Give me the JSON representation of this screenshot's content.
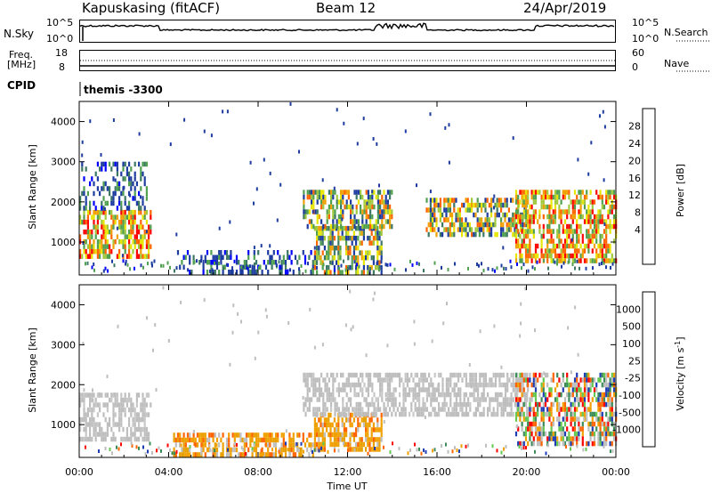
{
  "header": {
    "title": "Kapuskasing (fitACF)",
    "beam": "Beam 12",
    "date": "24/Apr/2019"
  },
  "nsky": {
    "label": "N.Sky",
    "left_top": "10^5",
    "left_bottom": "10^0",
    "right_top": "10^5",
    "right_bottom": "10^0",
    "right_label": "N.Search"
  },
  "freq": {
    "label_line1": "Freq.",
    "label_line2": "[MHz]",
    "left_top": "18",
    "left_bottom": "8",
    "right_top": "60",
    "right_bottom": "0",
    "right_label": "Nave"
  },
  "cpid": {
    "label": "CPID",
    "value": "themis -3300"
  },
  "colors": {
    "power": [
      "#0000ff",
      "#1e3ca0",
      "#3c7864",
      "#50a050",
      "#a0c83c",
      "#e6e600",
      "#f0a000",
      "#ff6400",
      "#ff0000"
    ],
    "velocity": [
      "#1e3cb4",
      "#2864a0",
      "#3c8c5a",
      "#64c850",
      "#c8c8c8",
      "#c8c8c8",
      "#f0a000",
      "#ff6400",
      "#ff0000"
    ],
    "ground_scatter": "#bebebe"
  },
  "chart_data": [
    {
      "type": "heatmap",
      "panel": "power",
      "title": "",
      "xlabel": "Time UT",
      "ylabel": "Slant Range [km]",
      "xlim": [
        "00:00",
        "24:00"
      ],
      "ylim": [
        180,
        4500
      ],
      "x_ticks": [
        "00:00",
        "04:00",
        "08:00",
        "12:00",
        "16:00",
        "20:00",
        "00:00"
      ],
      "y_ticks": [
        1000,
        2000,
        3000,
        4000
      ],
      "colorbar": {
        "label": "Power [dB]",
        "ticks": [
          "4",
          "8",
          "12",
          "16",
          "20",
          "24",
          "28"
        ]
      },
      "regions": [
        {
          "t": [
            0.0,
            3.2
          ],
          "range": [
            600,
            1800
          ],
          "level": "high"
        },
        {
          "t": [
            0.0,
            3.0
          ],
          "range": [
            1800,
            3000
          ],
          "level": "low"
        },
        {
          "t": [
            4.2,
            10.5
          ],
          "range": [
            250,
            800
          ],
          "level": "low"
        },
        {
          "t": [
            10.5,
            13.5
          ],
          "range": [
            300,
            1400
          ],
          "level": "medium"
        },
        {
          "t": [
            10.0,
            14.0
          ],
          "range": [
            1400,
            2300
          ],
          "level": "medium"
        },
        {
          "t": [
            15.5,
            20.0
          ],
          "range": [
            1200,
            2100
          ],
          "level": "medium"
        },
        {
          "t": [
            19.5,
            24.0
          ],
          "range": [
            500,
            2300
          ],
          "level": "high"
        }
      ]
    },
    {
      "type": "heatmap",
      "panel": "velocity",
      "title": "",
      "xlabel": "Time UT",
      "ylabel": "Slant Range [km]",
      "xlim": [
        "00:00",
        "24:00"
      ],
      "ylim": [
        180,
        4500
      ],
      "x_ticks": [
        "00:00",
        "04:00",
        "08:00",
        "12:00",
        "16:00",
        "20:00",
        "00:00"
      ],
      "y_ticks": [
        1000,
        2000,
        3000,
        4000
      ],
      "colorbar": {
        "label": "Velocity [m s-1]",
        "ticks": [
          "1000",
          "500",
          "100",
          "25",
          "-25",
          "-100",
          "-500",
          "-1000"
        ]
      },
      "regions": [
        {
          "t": [
            0.0,
            3.2
          ],
          "range": [
            600,
            1800
          ],
          "level": "ground"
        },
        {
          "t": [
            4.2,
            10.5
          ],
          "range": [
            250,
            800
          ],
          "level": "negative"
        },
        {
          "t": [
            10.5,
            13.5
          ],
          "range": [
            400,
            1300
          ],
          "level": "negative"
        },
        {
          "t": [
            10.0,
            20.0
          ],
          "range": [
            1300,
            2300
          ],
          "level": "ground"
        },
        {
          "t": [
            19.5,
            24.0
          ],
          "range": [
            500,
            2300
          ],
          "level": "mixed"
        }
      ]
    }
  ],
  "axes": {
    "xlabel": "Time UT",
    "ylabel": "Slant Range [km]",
    "power_label": "Power [dB]",
    "velocity_label_main": "Velocity [m s",
    "velocity_label_sup": "-1",
    "velocity_label_end": "]"
  }
}
